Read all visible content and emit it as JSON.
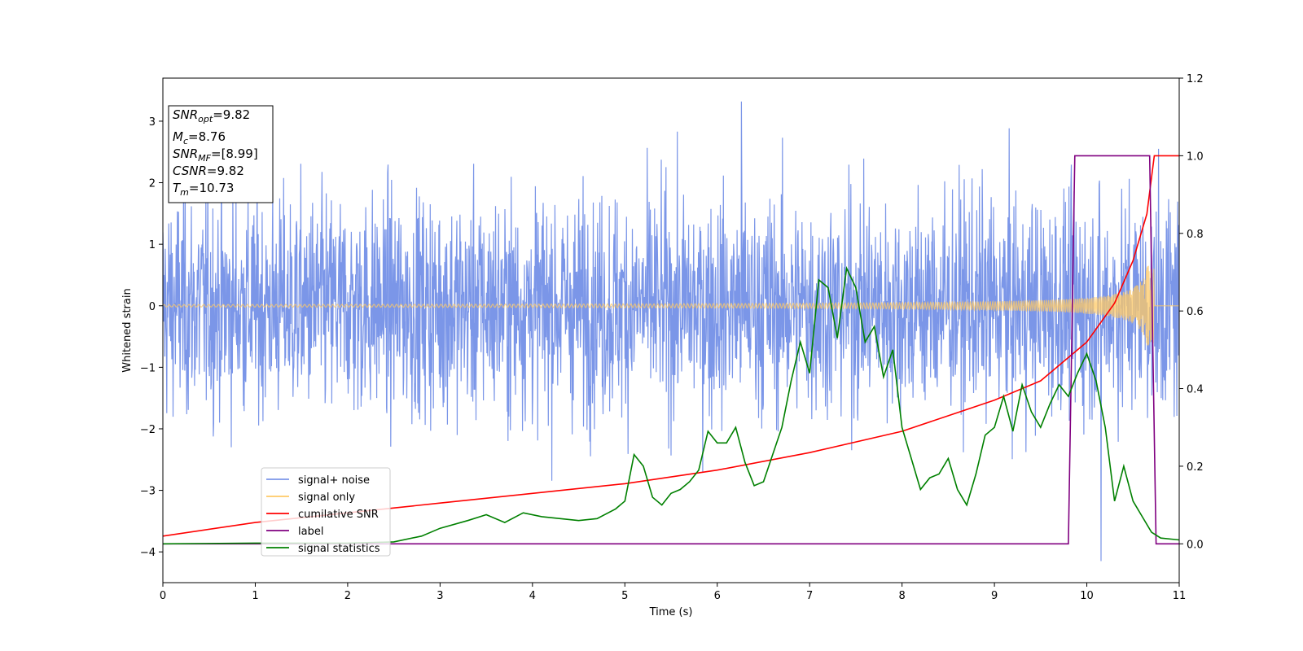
{
  "chart_data": {
    "type": "line",
    "xlabel": "Time (s)",
    "ylabel": "Whitened strain",
    "xlim": [
      0,
      11
    ],
    "ylim_left": [
      -4.5,
      3.7
    ],
    "ylim_right": [
      -0.1,
      1.2
    ],
    "x_ticks": [
      0,
      1,
      2,
      3,
      4,
      5,
      6,
      7,
      8,
      9,
      10,
      11
    ],
    "y_ticks_left": [
      -4,
      -3,
      -2,
      -1,
      0,
      1,
      2,
      3
    ],
    "y_ticks_right": [
      0.0,
      0.2,
      0.4,
      0.6,
      0.8,
      1.0,
      1.2
    ],
    "grid": false,
    "legend_placement": "lower-left",
    "annotation": {
      "lines": [
        {
          "base": "SNR",
          "sub": "opt",
          "value": "=9.82"
        },
        {
          "base": "M",
          "sub": "c",
          "value": "=8.76"
        },
        {
          "base": "SNR",
          "sub": "MF",
          "value": "=[8.99]"
        },
        {
          "base": "CSNR",
          "sub": "",
          "value": "=9.82"
        },
        {
          "base": "T",
          "sub": "m",
          "value": "=10.73"
        }
      ]
    },
    "series": [
      {
        "name": "signal+ noise",
        "color": "#7b96e8",
        "axis": "left",
        "envelope": {
          "std": 0.9,
          "peak_max": 3.32,
          "peak_min": -4.15
        }
      },
      {
        "name": "signal only",
        "color": "#ffc966",
        "axis": "left",
        "envelope": {
          "amplitude_start": 0.02,
          "amplitude_peak": 0.65,
          "merger_time": 10.73
        }
      },
      {
        "name": "cumilative SNR",
        "color": "#ff0000",
        "axis": "right",
        "x": [
          0,
          1,
          2,
          3,
          4,
          5,
          6,
          7,
          8,
          9,
          9.5,
          10,
          10.3,
          10.5,
          10.65,
          10.73,
          11
        ],
        "y": [
          0.02,
          0.055,
          0.08,
          0.105,
          0.13,
          0.155,
          0.19,
          0.235,
          0.29,
          0.37,
          0.42,
          0.52,
          0.62,
          0.73,
          0.85,
          1.0,
          1.0
        ]
      },
      {
        "name": "label",
        "color": "#800080",
        "axis": "right",
        "x": [
          0,
          9.8,
          9.87,
          10.68,
          10.75,
          11
        ],
        "y": [
          0,
          0,
          1,
          1,
          0,
          0
        ]
      },
      {
        "name": "signal statistics",
        "color": "#008000",
        "axis": "right",
        "x": [
          0,
          1,
          2,
          2.5,
          2.8,
          3,
          3.3,
          3.5,
          3.7,
          3.9,
          4.1,
          4.3,
          4.5,
          4.7,
          4.9,
          5.0,
          5.1,
          5.2,
          5.3,
          5.4,
          5.5,
          5.6,
          5.7,
          5.8,
          5.9,
          6.0,
          6.1,
          6.2,
          6.3,
          6.4,
          6.5,
          6.6,
          6.7,
          6.8,
          6.9,
          7.0,
          7.1,
          7.2,
          7.3,
          7.4,
          7.5,
          7.6,
          7.7,
          7.8,
          7.9,
          8.0,
          8.1,
          8.2,
          8.3,
          8.4,
          8.5,
          8.6,
          8.7,
          8.8,
          8.9,
          9.0,
          9.1,
          9.2,
          9.3,
          9.4,
          9.5,
          9.6,
          9.7,
          9.8,
          9.9,
          10.0,
          10.1,
          10.2,
          10.3,
          10.4,
          10.5,
          10.6,
          10.7,
          10.8,
          11
        ],
        "y": [
          0,
          0.002,
          0.002,
          0.005,
          0.02,
          0.04,
          0.06,
          0.075,
          0.055,
          0.08,
          0.07,
          0.065,
          0.06,
          0.065,
          0.09,
          0.11,
          0.23,
          0.2,
          0.12,
          0.1,
          0.13,
          0.14,
          0.16,
          0.19,
          0.29,
          0.26,
          0.26,
          0.3,
          0.21,
          0.15,
          0.16,
          0.23,
          0.3,
          0.42,
          0.52,
          0.44,
          0.68,
          0.66,
          0.53,
          0.71,
          0.66,
          0.52,
          0.56,
          0.43,
          0.5,
          0.3,
          0.22,
          0.14,
          0.17,
          0.18,
          0.22,
          0.14,
          0.1,
          0.18,
          0.28,
          0.3,
          0.38,
          0.29,
          0.41,
          0.34,
          0.3,
          0.36,
          0.41,
          0.38,
          0.44,
          0.49,
          0.42,
          0.3,
          0.11,
          0.2,
          0.11,
          0.07,
          0.03,
          0.015,
          0.01
        ]
      }
    ]
  }
}
